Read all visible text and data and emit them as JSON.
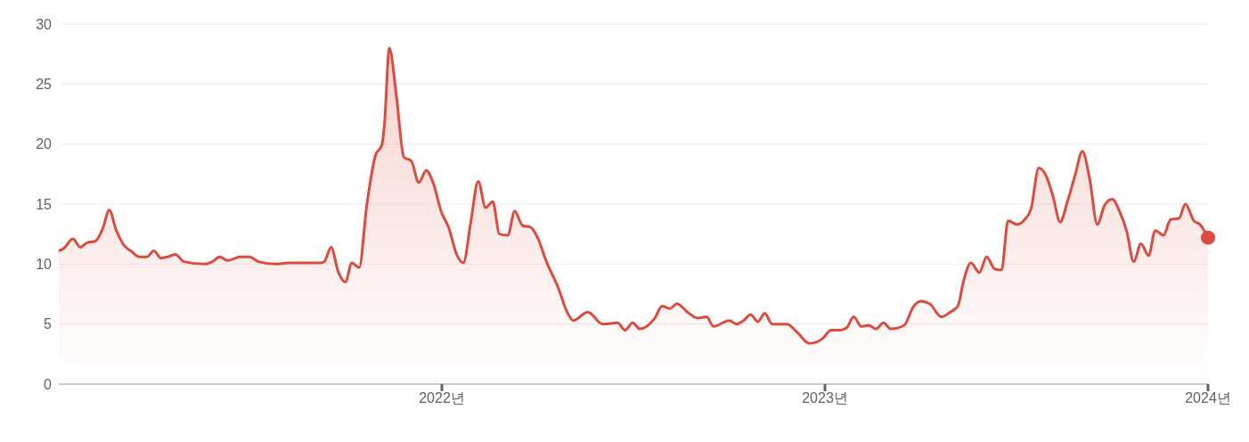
{
  "chart_data": {
    "type": "area",
    "xlim": [
      2021,
      2024
    ],
    "xticks": [
      {
        "value": 2022,
        "label": "2022년"
      },
      {
        "value": 2023,
        "label": "2023년"
      },
      {
        "value": 2024,
        "label": "2024년"
      }
    ],
    "ylim": [
      0,
      30
    ],
    "yticks": [
      0,
      5,
      10,
      15,
      20,
      25,
      30
    ],
    "grid": "y",
    "series": [
      {
        "color": "#db4c3f",
        "x": [
          2021.0,
          2021.013,
          2021.037,
          2021.056,
          2021.075,
          2021.095,
          2021.114,
          2021.132,
          2021.149,
          2021.172,
          2021.188,
          2021.211,
          2021.23,
          2021.248,
          2021.267,
          2021.284,
          2021.304,
          2021.327,
          2021.381,
          2021.401,
          2021.42,
          2021.44,
          2021.474,
          2021.498,
          2021.521,
          2021.567,
          2021.598,
          2021.684,
          2021.693,
          2021.711,
          2021.729,
          2021.748,
          2021.765,
          2021.784,
          2021.804,
          2021.827,
          2021.843,
          2021.85,
          2021.863,
          2021.881,
          2021.901,
          2021.92,
          2021.94,
          2021.959,
          2021.978,
          2021.998,
          2022.017,
          2022.04,
          2022.056,
          2022.075,
          2022.095,
          2022.114,
          2022.133,
          2022.15,
          2022.172,
          2022.19,
          2022.211,
          2022.23,
          2022.25,
          2022.273,
          2022.304,
          2022.327,
          2022.343,
          2022.381,
          2022.42,
          2022.459,
          2022.478,
          2022.498,
          2022.517,
          2022.556,
          2022.575,
          2022.595,
          2022.614,
          2022.641,
          2022.668,
          2022.691,
          2022.709,
          2022.75,
          2022.769,
          2022.788,
          2022.806,
          2022.825,
          2022.843,
          2022.862,
          2022.901,
          2022.928,
          2022.959,
          2022.978,
          2022.994,
          2023.016,
          2023.04,
          2023.057,
          2023.075,
          2023.095,
          2023.114,
          2023.133,
          2023.153,
          2023.172,
          2023.207,
          2023.23,
          2023.25,
          2023.273,
          2023.304,
          2023.327,
          2023.347,
          2023.362,
          2023.381,
          2023.403,
          2023.422,
          2023.443,
          2023.461,
          2023.478,
          2023.502,
          2023.521,
          2023.538,
          2023.558,
          2023.575,
          2023.595,
          2023.614,
          2023.633,
          2023.653,
          2023.672,
          2023.691,
          2023.711,
          2023.73,
          2023.75,
          2023.769,
          2023.788,
          2023.806,
          2023.825,
          2023.845,
          2023.862,
          2023.884,
          2023.902,
          2023.924,
          2023.941,
          2023.963,
          2023.979,
          2024.0
        ],
        "values": [
          11.1,
          11.3,
          12.1,
          11.4,
          11.8,
          11.9,
          12.9,
          14.5,
          12.9,
          11.5,
          11.1,
          10.6,
          10.6,
          11.1,
          10.5,
          10.6,
          10.8,
          10.2,
          10.0,
          10.2,
          10.6,
          10.3,
          10.6,
          10.6,
          10.2,
          10.0,
          10.1,
          10.1,
          10.2,
          11.4,
          9.4,
          8.5,
          10.1,
          9.7,
          14.9,
          19.1,
          19.9,
          21.6,
          28.0,
          24.1,
          18.9,
          18.6,
          16.8,
          17.8,
          16.7,
          14.4,
          13.1,
          10.7,
          10.1,
          13.4,
          16.9,
          14.7,
          15.2,
          12.5,
          12.4,
          14.4,
          13.2,
          13.1,
          12.2,
          10.2,
          8.0,
          6.0,
          5.3,
          6.0,
          5.0,
          5.1,
          4.5,
          5.1,
          4.6,
          5.5,
          6.5,
          6.3,
          6.7,
          6.0,
          5.5,
          5.6,
          4.8,
          5.3,
          5.0,
          5.3,
          5.8,
          5.2,
          5.9,
          5.0,
          5.0,
          4.3,
          3.4,
          3.5,
          3.8,
          4.5,
          4.5,
          4.7,
          5.6,
          4.8,
          4.9,
          4.6,
          5.1,
          4.6,
          4.9,
          6.4,
          6.9,
          6.7,
          5.6,
          6.0,
          6.5,
          8.6,
          10.1,
          9.3,
          10.6,
          9.6,
          9.5,
          13.6,
          13.3,
          13.7,
          14.6,
          18.0,
          17.5,
          15.7,
          13.5,
          15.2,
          17.4,
          19.4,
          17.1,
          13.3,
          14.9,
          15.4,
          14.4,
          12.7,
          10.2,
          11.7,
          10.7,
          12.8,
          12.4,
          13.7,
          13.8,
          15.0,
          13.6,
          13.3,
          12.2
        ]
      },
      {
        "type": "scatter",
        "color": "#db4c3f",
        "marker": "circle",
        "x": [
          2024.0
        ],
        "values": [
          12.2
        ]
      }
    ]
  }
}
